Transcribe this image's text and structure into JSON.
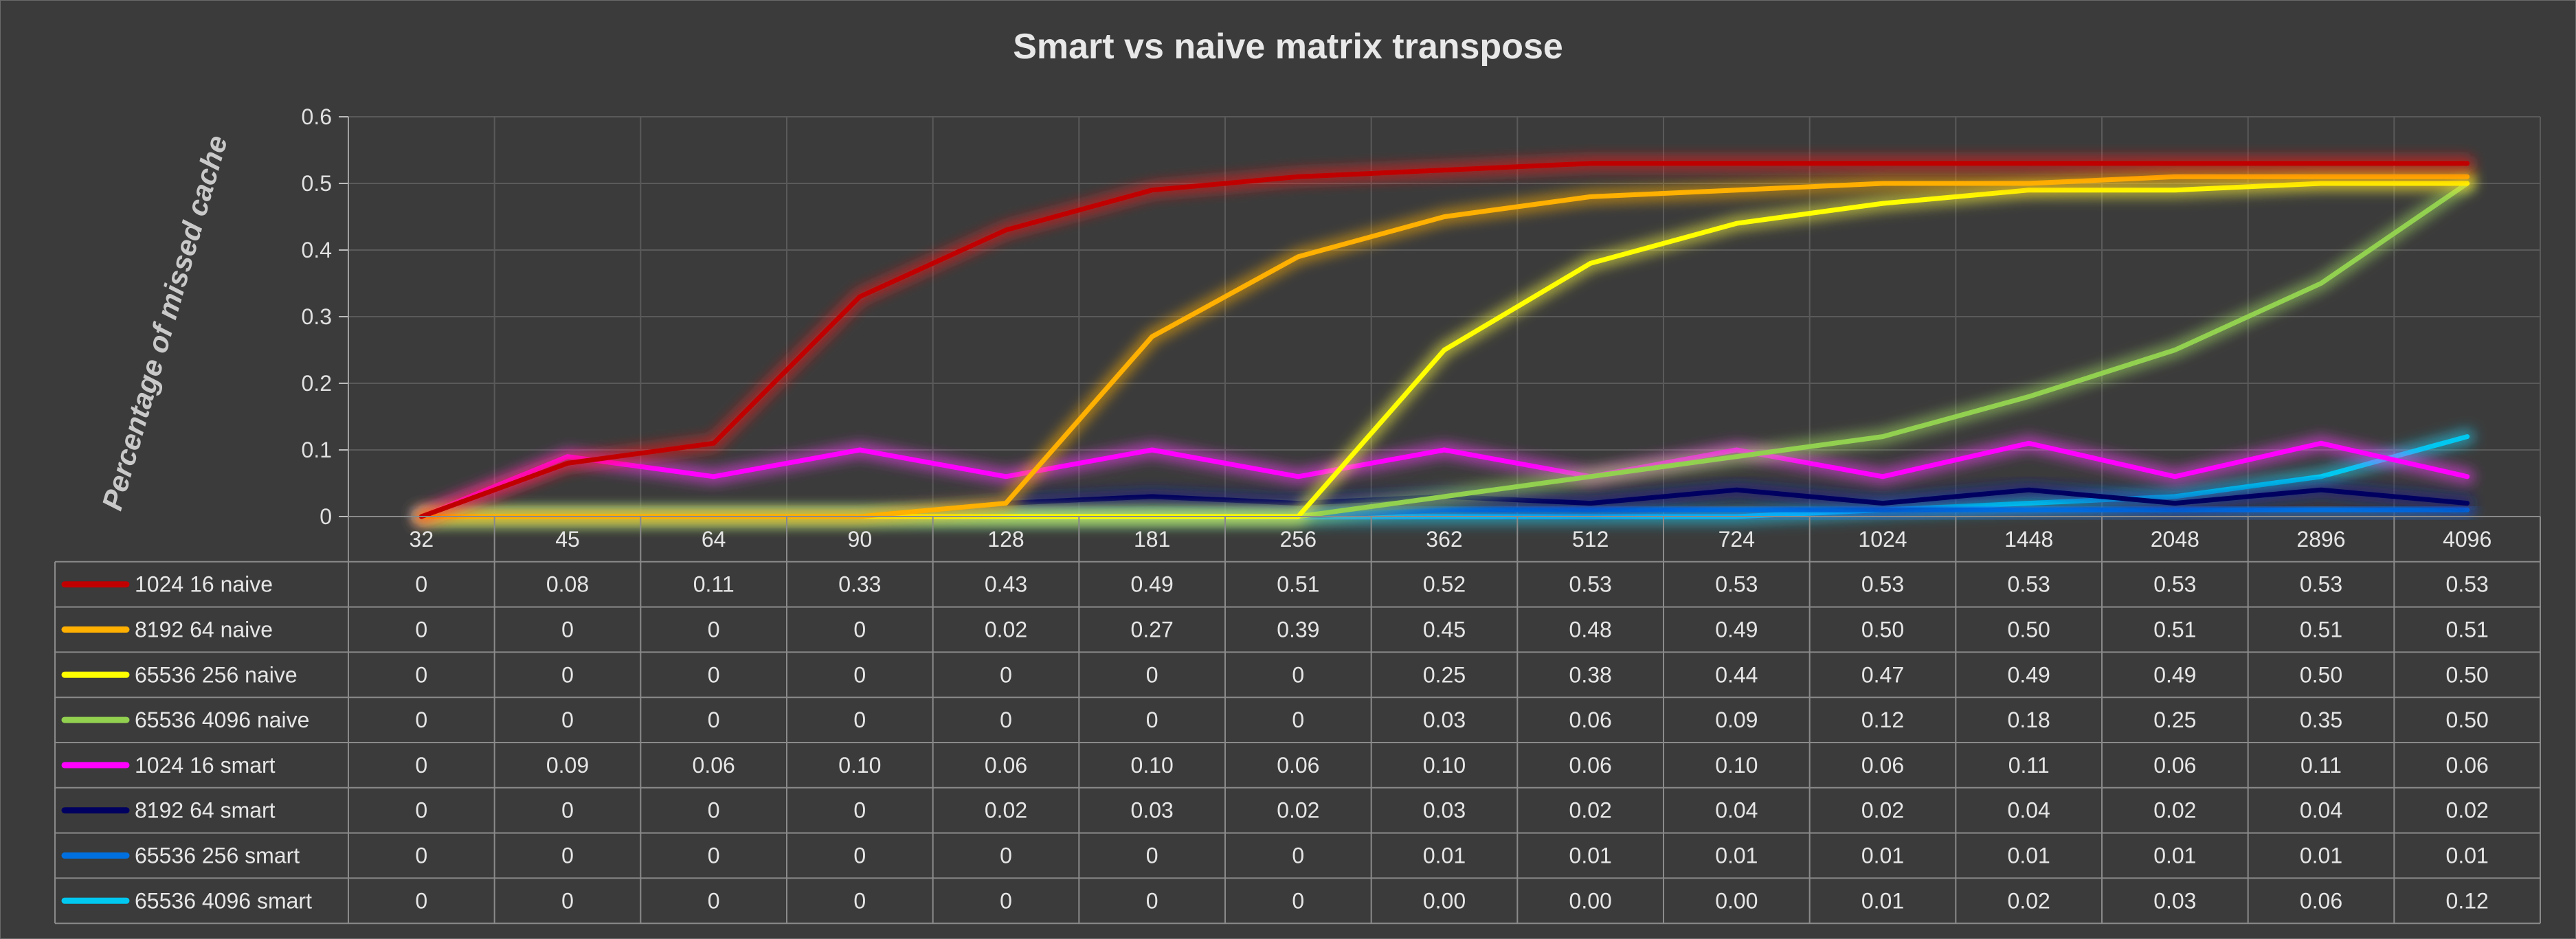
{
  "chart_data": {
    "type": "line",
    "title": "Smart vs naive matrix transpose",
    "xlabel": "",
    "ylabel": "Percentage of missed cache",
    "ylim": [
      0,
      0.6
    ],
    "yticks": [
      "0",
      "0.1",
      "0.2",
      "0.3",
      "0.4",
      "0.5",
      "0.6"
    ],
    "grid": true,
    "legend": "data-table-left",
    "categories": [
      "32",
      "45",
      "64",
      "90",
      "128",
      "181",
      "256",
      "362",
      "512",
      "724",
      "1024",
      "1448",
      "2048",
      "2896",
      "4096"
    ],
    "series": [
      {
        "name": "1024 16 naive",
        "color": "#c00000",
        "glow": "#ff2020",
        "values": [
          0,
          0.08,
          0.11,
          0.33,
          0.43,
          0.49,
          0.51,
          0.52,
          0.53,
          0.53,
          0.53,
          0.53,
          0.53,
          0.53,
          0.53
        ],
        "labels": [
          "0",
          "0.08",
          "0.11",
          "0.33",
          "0.43",
          "0.49",
          "0.51",
          "0.52",
          "0.53",
          "0.53",
          "0.53",
          "0.53",
          "0.53",
          "0.53",
          "0.53"
        ]
      },
      {
        "name": "8192 64 naive",
        "color": "#ffb000",
        "glow": "#ffb000",
        "values": [
          0,
          0,
          0,
          0,
          0.02,
          0.27,
          0.39,
          0.45,
          0.48,
          0.49,
          0.5,
          0.5,
          0.51,
          0.51,
          0.51
        ],
        "labels": [
          "0",
          "0",
          "0",
          "0",
          "0.02",
          "0.27",
          "0.39",
          "0.45",
          "0.48",
          "0.49",
          "0.50",
          "0.50",
          "0.51",
          "0.51",
          "0.51"
        ]
      },
      {
        "name": "65536 256 naive",
        "color": "#ffff00",
        "glow": "#ffff40",
        "values": [
          0,
          0,
          0,
          0,
          0,
          0,
          0,
          0.25,
          0.38,
          0.44,
          0.47,
          0.49,
          0.49,
          0.5,
          0.5
        ],
        "labels": [
          "0",
          "0",
          "0",
          "0",
          "0",
          "0",
          "0",
          "0.25",
          "0.38",
          "0.44",
          "0.47",
          "0.49",
          "0.49",
          "0.50",
          "0.50"
        ]
      },
      {
        "name": "65536 4096 naive",
        "color": "#92d050",
        "glow": "#a6e060",
        "values": [
          0,
          0,
          0,
          0,
          0,
          0,
          0,
          0.03,
          0.06,
          0.09,
          0.12,
          0.18,
          0.25,
          0.35,
          0.5
        ],
        "labels": [
          "0",
          "0",
          "0",
          "0",
          "0",
          "0",
          "0",
          "0.03",
          "0.06",
          "0.09",
          "0.12",
          "0.18",
          "0.25",
          "0.35",
          "0.50"
        ]
      },
      {
        "name": "1024 16 smart",
        "color": "#ff00ff",
        "glow": "#ff40ff",
        "values": [
          0,
          0.09,
          0.06,
          0.1,
          0.06,
          0.1,
          0.06,
          0.1,
          0.06,
          0.1,
          0.06,
          0.11,
          0.06,
          0.11,
          0.06
        ],
        "labels": [
          "0",
          "0.09",
          "0.06",
          "0.10",
          "0.06",
          "0.10",
          "0.06",
          "0.10",
          "0.06",
          "0.10",
          "0.06",
          "0.11",
          "0.06",
          "0.11",
          "0.06"
        ]
      },
      {
        "name": "8192 64 smart",
        "color": "#000060",
        "glow": "#1020a0",
        "values": [
          0,
          0,
          0,
          0,
          0.02,
          0.03,
          0.02,
          0.03,
          0.02,
          0.04,
          0.02,
          0.04,
          0.02,
          0.04,
          0.02
        ],
        "labels": [
          "0",
          "0",
          "0",
          "0",
          "0.02",
          "0.03",
          "0.02",
          "0.03",
          "0.02",
          "0.04",
          "0.02",
          "0.04",
          "0.02",
          "0.04",
          "0.02"
        ]
      },
      {
        "name": "65536 256 smart",
        "color": "#0070e0",
        "glow": "#2080ff",
        "values": [
          0,
          0,
          0,
          0,
          0,
          0,
          0,
          0.01,
          0.01,
          0.01,
          0.01,
          0.01,
          0.01,
          0.01,
          0.01
        ],
        "labels": [
          "0",
          "0",
          "0",
          "0",
          "0",
          "0",
          "0",
          "0.01",
          "0.01",
          "0.01",
          "0.01",
          "0.01",
          "0.01",
          "0.01",
          "0.01"
        ]
      },
      {
        "name": "65536 4096 smart",
        "color": "#00c8f0",
        "glow": "#20d8ff",
        "values": [
          0,
          0,
          0,
          0,
          0,
          0,
          0,
          0.0,
          0.0,
          0.0,
          0.01,
          0.02,
          0.03,
          0.06,
          0.12
        ],
        "labels": [
          "0",
          "0",
          "0",
          "0",
          "0",
          "0",
          "0",
          "0.00",
          "0.00",
          "0.00",
          "0.01",
          "0.02",
          "0.03",
          "0.06",
          "0.12"
        ]
      }
    ]
  }
}
